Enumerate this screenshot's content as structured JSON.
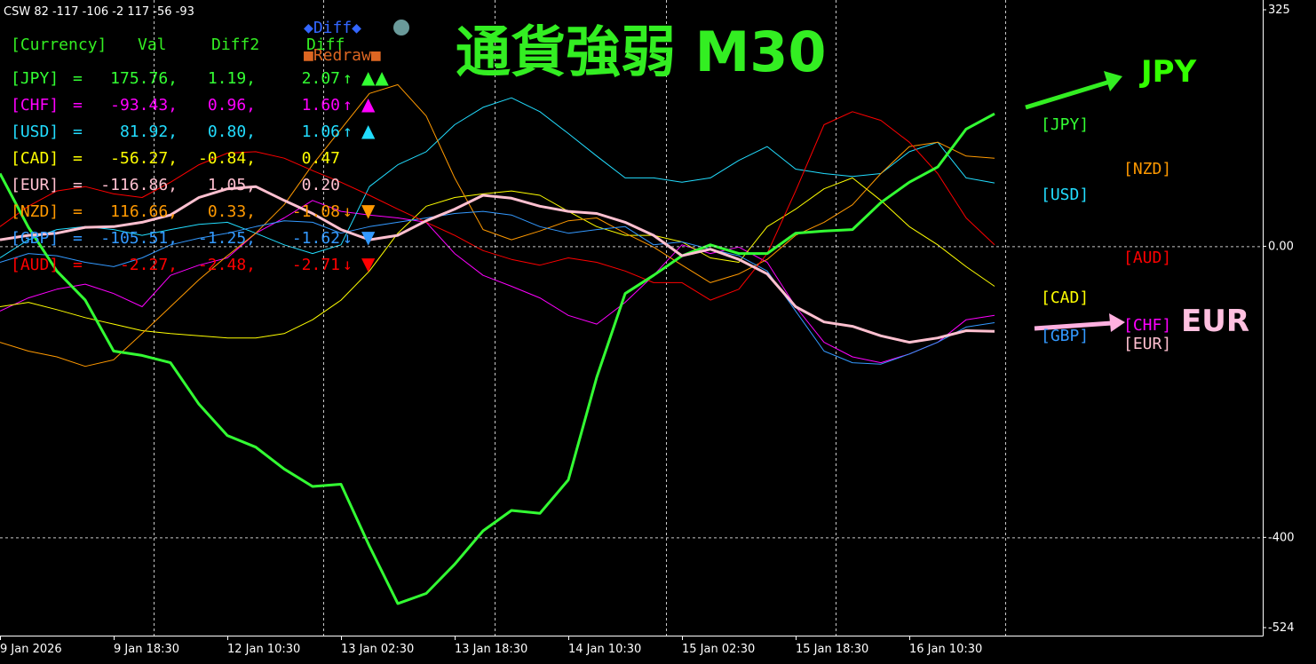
{
  "chart_data": {
    "type": "line",
    "title": "通貨強弱 M30",
    "header_text": "CSW 82 -117 -106 -2 117 -56 -93",
    "table_header": [
      "[Currency]",
      "Val",
      "Diff2",
      "Diff"
    ],
    "buttons": [
      "◆Diff◆",
      "■Redraw■"
    ],
    "annotations": [
      {
        "text": "JPY",
        "color": "#33ff00"
      },
      {
        "text": "EUR",
        "color": "#ffc0e0"
      }
    ],
    "categories": [
      "9 Jan 2026",
      null,
      null,
      null,
      "9 Jan 18:30",
      null,
      null,
      null,
      "12 Jan 10:30",
      null,
      null,
      null,
      "13 Jan 02:30",
      null,
      null,
      null,
      "13 Jan 18:30",
      null,
      null,
      null,
      "14 Jan 10:30",
      null,
      null,
      null,
      "15 Jan 02:30",
      null,
      null,
      null,
      "15 Jan 18:30",
      null,
      null,
      null,
      "16 Jan 10:30",
      null,
      null,
      null
    ],
    "ylim": [
      -524,
      325
    ],
    "yticks": [
      325,
      {
        "value": 0,
        "label": "0.00"
      },
      -400,
      -524
    ],
    "series": [
      {
        "name": "[JPY]",
        "color": "#33ff33",
        "line_width": 3,
        "row": [
          "=",
          "175.76,",
          "1.19,",
          "2.07",
          "↑"
        ],
        "marker": "▲▲",
        "values": [
          100,
          26,
          -34,
          -74,
          -144,
          -150,
          -160,
          -217,
          -260,
          -276,
          -306,
          -330,
          -327,
          -412,
          -491,
          -477,
          -437,
          -391,
          -363,
          -367,
          -321,
          -180,
          -65,
          -40,
          -13,
          2,
          -10,
          -10,
          18,
          21,
          23,
          60,
          88,
          109,
          161,
          182
        ]
      },
      {
        "name": "[CHF]",
        "color": "#ff00ff",
        "line_width": 1,
        "row": [
          "=",
          "-93.43,",
          "0.96,",
          "1.60",
          "↑"
        ],
        "marker": "▲",
        "values": [
          -89,
          -71,
          -59,
          -52,
          -65,
          -83,
          -40,
          -26,
          -16,
          18,
          39,
          63,
          48,
          43,
          39,
          33,
          -10,
          -40,
          -55,
          -71,
          -95,
          -107,
          -77,
          -40,
          2,
          -10,
          -1,
          -22,
          -83,
          -132,
          -152,
          -160,
          -148,
          -132,
          -101,
          -95
        ]
      },
      {
        "name": "[USD]",
        "color": "#22ddff",
        "line_width": 1,
        "row": [
          "=",
          "81.92,",
          "0.80,",
          "1.06",
          "↑"
        ],
        "marker": "▲",
        "values": [
          -16,
          9,
          23,
          27,
          23,
          15,
          23,
          30,
          33,
          18,
          2,
          -10,
          2,
          82,
          112,
          130,
          167,
          191,
          204,
          185,
          155,
          124,
          94,
          94,
          88,
          94,
          118,
          137,
          106,
          100,
          96,
          100,
          130,
          143,
          94,
          87
        ]
      },
      {
        "name": "[CAD]",
        "color": "#ffff00",
        "line_width": 1,
        "row": [
          "=",
          "-56.27,",
          "-0.84,",
          "0.47",
          ""
        ],
        "marker": "",
        "values": [
          -83,
          -77,
          -87,
          -98,
          -107,
          -116,
          -120,
          -123,
          -126,
          -126,
          -120,
          -101,
          -74,
          -34,
          18,
          55,
          67,
          72,
          76,
          70,
          48,
          27,
          15,
          15,
          6,
          -16,
          -22,
          27,
          51,
          79,
          94,
          63,
          27,
          2,
          -28,
          -55
        ]
      },
      {
        "name": "[EUR]",
        "color": "#ffc0d0",
        "line_width": 3,
        "row": [
          "=",
          "-116.86,",
          "1.05,",
          "0.20",
          ""
        ],
        "marker": "",
        "values": [
          9,
          15,
          18,
          26,
          27,
          33,
          43,
          67,
          79,
          82,
          63,
          45,
          23,
          9,
          15,
          35,
          51,
          70,
          66,
          55,
          48,
          45,
          33,
          15,
          -13,
          -4,
          -18,
          -38,
          -83,
          -104,
          -110,
          -123,
          -132,
          -126,
          -116,
          -117
        ]
      },
      {
        "name": "[NZD]",
        "color": "#ff9900",
        "line_width": 1,
        "row": [
          "=",
          "116.66,",
          "0.33,",
          "-1.08",
          "↓"
        ],
        "marker": "▼",
        "values": [
          -132,
          -144,
          -152,
          -165,
          -156,
          -120,
          -83,
          -46,
          -13,
          18,
          57,
          112,
          161,
          210,
          222,
          179,
          94,
          23,
          9,
          21,
          35,
          39,
          18,
          -1,
          -26,
          -50,
          -38,
          -18,
          15,
          33,
          57,
          100,
          137,
          143,
          124,
          121
        ]
      },
      {
        "name": "[GBP]",
        "color": "#3399ff",
        "line_width": 1,
        "row": [
          "=",
          "-105.51,",
          "-1.25,",
          "-1.62",
          "↓"
        ],
        "marker": "▼",
        "values": [
          -22,
          -10,
          -13,
          -22,
          -28,
          -16,
          2,
          11,
          18,
          27,
          35,
          33,
          18,
          27,
          33,
          39,
          45,
          48,
          43,
          27,
          18,
          23,
          27,
          2,
          6,
          -4,
          -13,
          -34,
          -89,
          -144,
          -160,
          -162,
          -148,
          -132,
          -111,
          -105
        ]
      },
      {
        "name": "[AUD]",
        "color": "#ff0000",
        "line_width": 1,
        "row": [
          "=",
          "-2.27,",
          "-2.48,",
          "-2.71",
          "↓"
        ],
        "marker": "▼",
        "values": [
          27,
          55,
          76,
          82,
          72,
          67,
          88,
          112,
          128,
          130,
          121,
          104,
          88,
          70,
          51,
          33,
          15,
          -6,
          -18,
          -26,
          -16,
          -22,
          -34,
          -50,
          -50,
          -74,
          -59,
          -10,
          76,
          167,
          185,
          173,
          143,
          100,
          39,
          2
        ]
      }
    ]
  }
}
